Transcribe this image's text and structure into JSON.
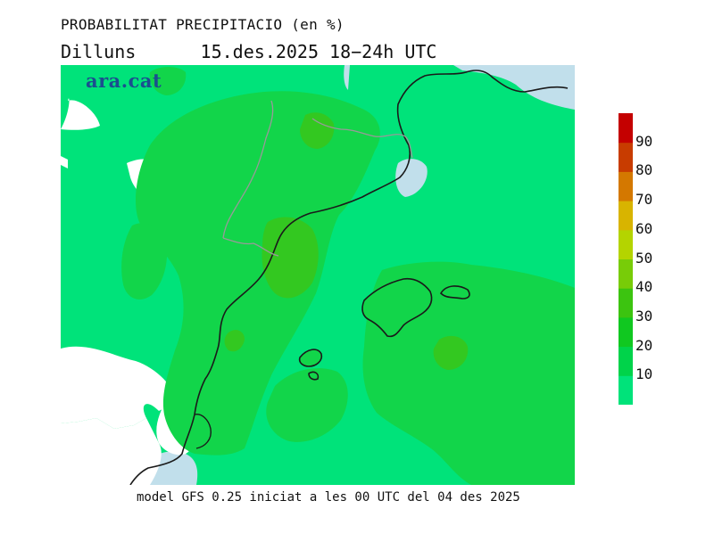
{
  "title": "PROBABILITAT PRECIPITACIO (en %)",
  "subtitle": {
    "day": "Dilluns",
    "date": "15.des.2025",
    "period": "18−24h UTC"
  },
  "brand": "ara.cat",
  "footer": "model GFS 0.25 iniciat a les 00 UTC del 04 des 2025",
  "colorbar": {
    "labels": [
      "10",
      "20",
      "30",
      "40",
      "50",
      "60",
      "70",
      "80",
      "90"
    ],
    "colors": [
      "#00e37a",
      "#00d34a",
      "#10c820",
      "#3cc410",
      "#78cc08",
      "#b4d400",
      "#d8b400",
      "#d47800",
      "#c83c00",
      "#c40000"
    ]
  },
  "map_colors": {
    "base": "#00e37a",
    "band_20": "#12d54a",
    "band_30": "#33c820",
    "no_data": "#ffffff",
    "water": "#c1dfeb",
    "coast": "#1a1a1a",
    "border": "#999999"
  }
}
